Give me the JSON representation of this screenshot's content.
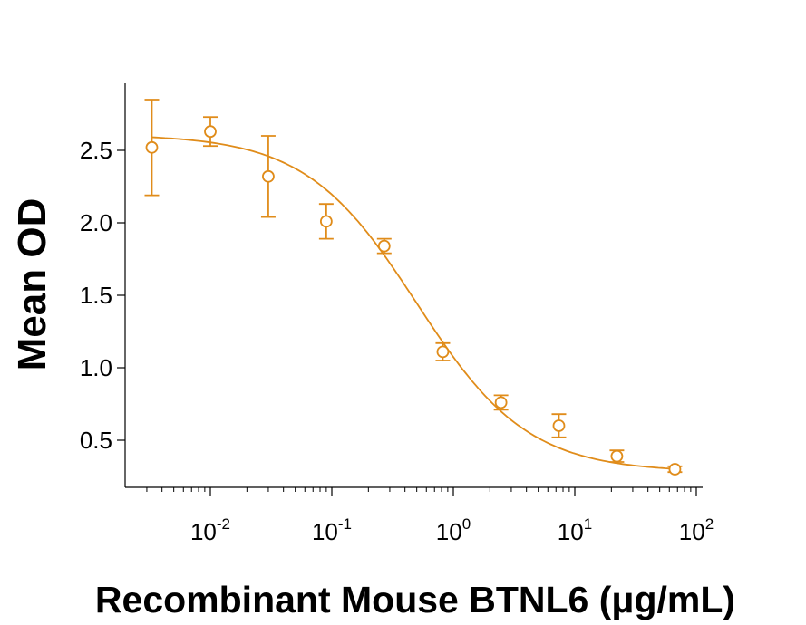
{
  "chart_data": {
    "type": "scatter",
    "title": "",
    "xlabel": "Recombinant Mouse BTNL6 (μg/mL)",
    "ylabel": "Mean OD",
    "x_scale": "log",
    "xlim": [
      0.002,
      100
    ],
    "ylim": [
      0.25,
      2.85
    ],
    "x_ticks": [
      {
        "value": 0.01,
        "base": "10",
        "exp": "-2"
      },
      {
        "value": 0.1,
        "base": "10",
        "exp": "-1"
      },
      {
        "value": 1,
        "base": "10",
        "exp": "0"
      },
      {
        "value": 10,
        "base": "10",
        "exp": "1"
      },
      {
        "value": 100,
        "base": "10",
        "exp": "2"
      }
    ],
    "y_ticks": [
      {
        "value": 0.5,
        "label": "0.5"
      },
      {
        "value": 1.0,
        "label": "1.0"
      },
      {
        "value": 1.5,
        "label": "1.5"
      },
      {
        "value": 2.0,
        "label": "2.0"
      },
      {
        "value": 2.5,
        "label": "2.5"
      }
    ],
    "grid": false,
    "color": "#E08C1A",
    "points": [
      {
        "x": 0.0033,
        "y": 2.52,
        "err": 0.33
      },
      {
        "x": 0.01,
        "y": 2.63,
        "err": 0.1
      },
      {
        "x": 0.03,
        "y": 2.32,
        "err": 0.28
      },
      {
        "x": 0.09,
        "y": 2.01,
        "err": 0.12
      },
      {
        "x": 0.27,
        "y": 1.84,
        "err": 0.05
      },
      {
        "x": 0.82,
        "y": 1.11,
        "err": 0.06
      },
      {
        "x": 2.47,
        "y": 0.76,
        "err": 0.05
      },
      {
        "x": 7.4,
        "y": 0.6,
        "err": 0.08
      },
      {
        "x": 22.2,
        "y": 0.39,
        "err": 0.04
      },
      {
        "x": 66.7,
        "y": 0.3,
        "err": 0.02
      }
    ],
    "fit": {
      "type": "4PL",
      "top": 2.61,
      "bottom": 0.28,
      "ec50": 0.5,
      "hill": 0.95
    }
  }
}
